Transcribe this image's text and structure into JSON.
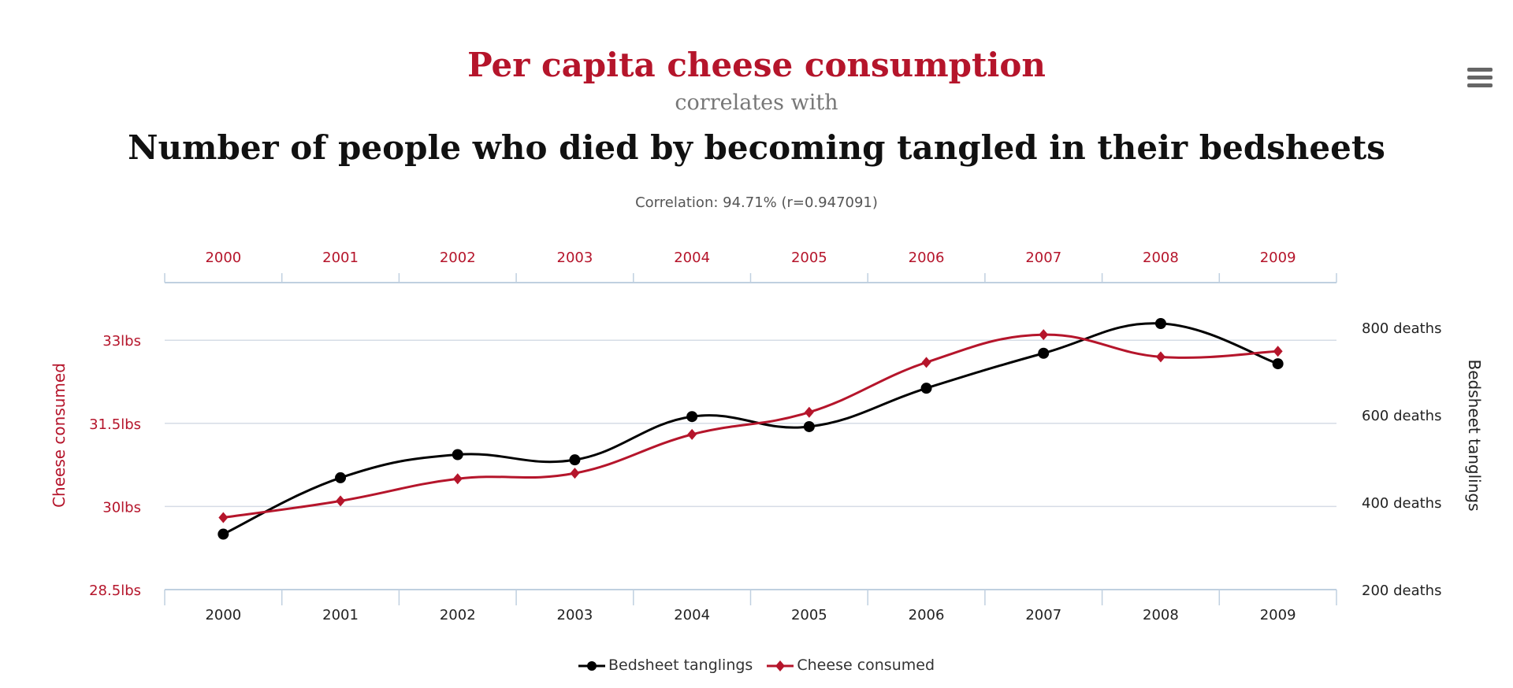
{
  "header": {
    "title": "Per capita cheese consumption",
    "subtitle": "correlates with",
    "main_title": "Number of people who died by becoming tangled in their bedsheets",
    "correlation": "Correlation: 94.71% (r=0.947091)",
    "menu_icon": "hamburger-menu-icon"
  },
  "colors": {
    "cheese": "#b5152b",
    "bedsheet": "#000000",
    "grid": "#d6dce6",
    "axis": "#c0d0e0"
  },
  "chart_data": {
    "type": "line",
    "title": "Per capita cheese consumption correlates with Number of people who died by becoming tangled in their bedsheets",
    "categories": [
      "2000",
      "2001",
      "2002",
      "2003",
      "2004",
      "2005",
      "2006",
      "2007",
      "2008",
      "2009"
    ],
    "series": [
      {
        "name": "Bedsheet tanglings",
        "axis": "right",
        "values": [
          327,
          456,
          509,
          497,
          596,
          573,
          661,
          741,
          809,
          717
        ]
      },
      {
        "name": "Cheese consumed",
        "axis": "left",
        "values": [
          29.8,
          30.1,
          30.5,
          30.6,
          31.3,
          31.7,
          32.6,
          33.1,
          32.7,
          32.8
        ]
      }
    ],
    "left_axis": {
      "label": "Cheese consumed",
      "ticks": [
        "28.5lbs",
        "30lbs",
        "31.5lbs",
        "33lbs"
      ],
      "tick_values": [
        28.5,
        30,
        31.5,
        33
      ],
      "range": [
        28.5,
        33.5
      ]
    },
    "right_axis": {
      "label": "Bedsheet tanglings",
      "ticks": [
        "200 deaths",
        "400 deaths",
        "600 deaths",
        "800 deaths"
      ],
      "tick_values": [
        200,
        400,
        600,
        800
      ],
      "range": [
        200,
        800
      ]
    },
    "grid": true,
    "legend": {
      "position": "bottom",
      "items": [
        "Bedsheet tanglings",
        "Cheese consumed"
      ]
    }
  }
}
